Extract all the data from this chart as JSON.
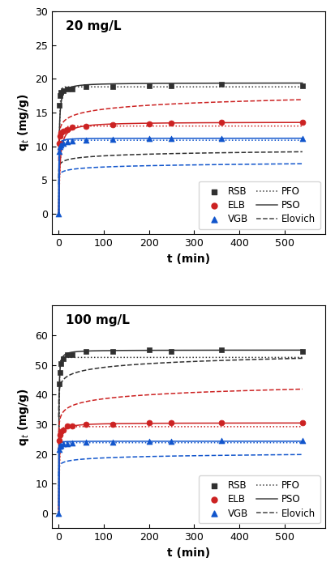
{
  "panel1": {
    "title": "20 mg/L",
    "ylabel": "q$_{t}$ (mg/g)",
    "xlabel": "t (min)",
    "ylim": [
      -3,
      30
    ],
    "xlim": [
      -15,
      590
    ],
    "yticks": [
      0,
      5,
      10,
      15,
      20,
      25,
      30
    ],
    "xticks": [
      0,
      100,
      200,
      300,
      400,
      500
    ],
    "scatter": {
      "RSB": {
        "t": [
          1,
          3,
          5,
          10,
          20,
          30,
          60,
          120,
          200,
          250,
          360,
          540
        ],
        "q": [
          16.1,
          17.5,
          18.0,
          18.2,
          18.5,
          18.5,
          18.8,
          18.8,
          19.0,
          19.0,
          19.2,
          19.0
        ],
        "color": "#303030",
        "marker": "s",
        "ms": 5
      },
      "ELB": {
        "t": [
          1,
          3,
          5,
          10,
          20,
          30,
          60,
          120,
          200,
          250,
          360,
          540
        ],
        "q": [
          10.5,
          11.5,
          12.0,
          12.2,
          12.5,
          12.8,
          13.0,
          13.2,
          13.3,
          13.4,
          13.5,
          13.5
        ],
        "color": "#cc2222",
        "marker": "o",
        "ms": 5
      },
      "VGB": {
        "t": [
          0,
          1,
          3,
          5,
          10,
          20,
          30,
          60,
          120,
          200,
          250,
          360,
          540
        ],
        "q": [
          0.0,
          9.3,
          10.0,
          10.2,
          10.5,
          10.7,
          10.8,
          10.9,
          11.0,
          11.1,
          11.1,
          11.2,
          11.2
        ],
        "color": "#1155cc",
        "marker": "^",
        "ms": 5
      }
    },
    "curves": {
      "RSB": {
        "PFO": {
          "qe": 18.8,
          "k1": 0.55,
          "color": "#303030",
          "ls": "dotted"
        },
        "PSO": {
          "qe": 19.4,
          "k2": 0.055,
          "color": "#303030",
          "ls": "solid"
        },
        "Elovich": {
          "a": 100000000.0,
          "b": 2.8,
          "color": "#303030",
          "ls": "dashed"
        }
      },
      "ELB": {
        "PFO": {
          "qe": 13.0,
          "k1": 0.25,
          "color": "#cc2222",
          "ls": "dotted"
        },
        "PSO": {
          "qe": 13.6,
          "k2": 0.028,
          "color": "#cc2222",
          "ls": "solid"
        },
        "Elovich": {
          "a": 1000000.0,
          "b": 1.2,
          "color": "#cc2222",
          "ls": "dashed"
        }
      },
      "VGB": {
        "PFO": {
          "qe": 10.9,
          "k1": 0.65,
          "color": "#1155cc",
          "ls": "dotted"
        },
        "PSO": {
          "qe": 11.2,
          "k2": 0.3,
          "color": "#1155cc",
          "ls": "solid"
        },
        "Elovich": {
          "a": 100000000.0,
          "b": 3.5,
          "color": "#1155cc",
          "ls": "dashed"
        }
      }
    }
  },
  "panel2": {
    "title": "100 mg/L",
    "ylabel": "q$_{t}$ (mg/g)",
    "xlabel": "t (min)",
    "ylim": [
      -5,
      70
    ],
    "xlim": [
      -15,
      590
    ],
    "yticks": [
      0,
      10,
      20,
      30,
      40,
      50,
      60
    ],
    "xticks": [
      0,
      100,
      200,
      300,
      400,
      500
    ],
    "scatter": {
      "RSB": {
        "t": [
          1,
          3,
          5,
          10,
          20,
          30,
          60,
          120,
          200,
          250,
          360,
          540
        ],
        "q": [
          43.5,
          47.5,
          50.5,
          52.0,
          53.5,
          53.5,
          54.5,
          54.5,
          55.0,
          54.5,
          55.0,
          54.5
        ],
        "color": "#303030",
        "marker": "s",
        "ms": 5
      },
      "ELB": {
        "t": [
          1,
          3,
          5,
          10,
          20,
          30,
          60,
          120,
          200,
          250,
          360,
          540
        ],
        "q": [
          24.5,
          26.5,
          27.5,
          28.0,
          29.5,
          29.5,
          30.0,
          30.0,
          30.5,
          30.5,
          30.5,
          30.5
        ],
        "color": "#cc2222",
        "marker": "o",
        "ms": 5
      },
      "VGB": {
        "t": [
          0,
          1,
          3,
          5,
          10,
          20,
          30,
          60,
          120,
          200,
          250,
          360,
          540
        ],
        "q": [
          0.0,
          21.5,
          22.5,
          23.0,
          23.5,
          23.5,
          23.8,
          24.0,
          24.0,
          24.3,
          24.3,
          24.5,
          24.5
        ],
        "color": "#1155cc",
        "marker": "^",
        "ms": 5
      }
    },
    "curves": {
      "RSB": {
        "PFO": {
          "qe": 52.5,
          "k1": 0.9,
          "color": "#303030",
          "ls": "dotted"
        },
        "PSO": {
          "qe": 55.0,
          "k2": 0.045,
          "color": "#303030",
          "ls": "solid"
        },
        "Elovich": {
          "a": 10000000000.0,
          "b": 0.55,
          "color": "#303030",
          "ls": "dashed"
        }
      },
      "ELB": {
        "PFO": {
          "qe": 29.2,
          "k1": 0.4,
          "color": "#cc2222",
          "ls": "dotted"
        },
        "PSO": {
          "qe": 30.5,
          "k2": 0.028,
          "color": "#cc2222",
          "ls": "solid"
        },
        "Elovich": {
          "a": 10000000.0,
          "b": 0.52,
          "color": "#cc2222",
          "ls": "dashed"
        }
      },
      "VGB": {
        "PFO": {
          "qe": 23.8,
          "k1": 1.5,
          "color": "#1155cc",
          "ls": "dotted"
        },
        "PSO": {
          "qe": 24.3,
          "k2": 0.5,
          "color": "#1155cc",
          "ls": "solid"
        },
        "Elovich": {
          "a": 10000000000.0,
          "b": 1.5,
          "color": "#1155cc",
          "ls": "dashed"
        }
      }
    }
  }
}
